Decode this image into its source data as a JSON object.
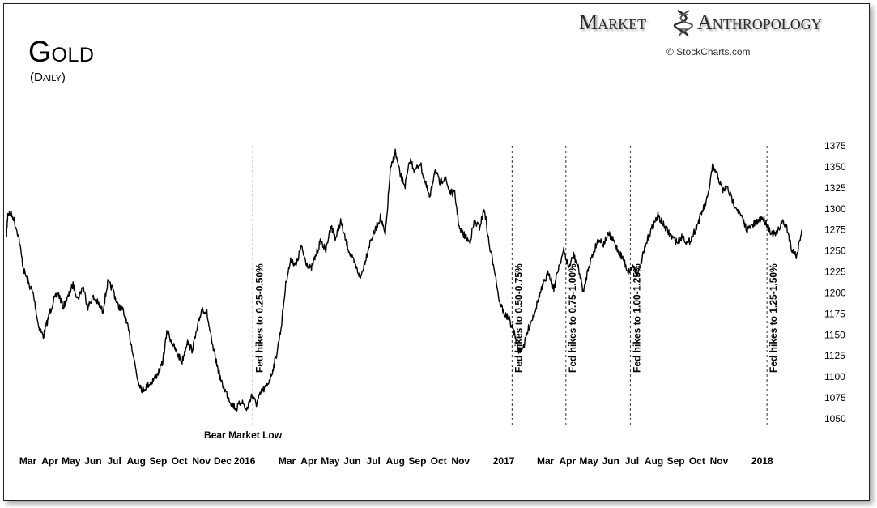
{
  "header": {
    "title": "Gold",
    "subtitle": "(Daily)",
    "brand_word1": "Market",
    "brand_word2": "Anthropology",
    "credit": "© StockCharts.com"
  },
  "icons": {
    "brand_mark": "dna-helix-icon"
  },
  "colors": {
    "price_line": "#000000",
    "vline": "#333333",
    "brand": "#2b2b2b"
  },
  "chart_data": {
    "type": "line",
    "title": "Gold",
    "subtitle": "(Daily)",
    "xlabel": "",
    "ylabel": "",
    "ylim": [
      1045,
      1385
    ],
    "xlim": [
      "2015-02-01",
      "2018-02-28"
    ],
    "grid": false,
    "yticks": [
      1050,
      1075,
      1100,
      1125,
      1150,
      1175,
      1200,
      1225,
      1250,
      1275,
      1300,
      1325,
      1350,
      1375
    ],
    "xticks": [
      {
        "label": "Mar",
        "date": "2015-03-01"
      },
      {
        "label": "Apr",
        "date": "2015-04-01"
      },
      {
        "label": "May",
        "date": "2015-05-01"
      },
      {
        "label": "Jun",
        "date": "2015-06-01"
      },
      {
        "label": "Jul",
        "date": "2015-07-01"
      },
      {
        "label": "Aug",
        "date": "2015-08-01"
      },
      {
        "label": "Sep",
        "date": "2015-09-01"
      },
      {
        "label": "Oct",
        "date": "2015-10-01"
      },
      {
        "label": "Nov",
        "date": "2015-11-01"
      },
      {
        "label": "Dec",
        "date": "2015-12-01"
      },
      {
        "label": "2016",
        "date": "2016-01-01"
      },
      {
        "label": "Mar",
        "date": "2016-03-01"
      },
      {
        "label": "Apr",
        "date": "2016-04-01"
      },
      {
        "label": "May",
        "date": "2016-05-01"
      },
      {
        "label": "Jun",
        "date": "2016-06-01"
      },
      {
        "label": "Jul",
        "date": "2016-07-01"
      },
      {
        "label": "Aug",
        "date": "2016-08-01"
      },
      {
        "label": "Sep",
        "date": "2016-09-01"
      },
      {
        "label": "Oct",
        "date": "2016-10-01"
      },
      {
        "label": "Nov",
        "date": "2016-11-01"
      },
      {
        "label": "2017",
        "date": "2017-01-01"
      },
      {
        "label": "Mar",
        "date": "2017-03-01"
      },
      {
        "label": "Apr",
        "date": "2017-04-01"
      },
      {
        "label": "May",
        "date": "2017-05-01"
      },
      {
        "label": "Jun",
        "date": "2017-06-01"
      },
      {
        "label": "Jul",
        "date": "2017-07-01"
      },
      {
        "label": "Aug",
        "date": "2017-08-01"
      },
      {
        "label": "Sep",
        "date": "2017-09-01"
      },
      {
        "label": "Oct",
        "date": "2017-10-01"
      },
      {
        "label": "Nov",
        "date": "2017-11-01"
      },
      {
        "label": "2018",
        "date": "2018-01-01"
      }
    ],
    "series": [
      {
        "values": [
          [
            "2015-02-01",
            1268
          ],
          [
            "2015-02-03",
            1296
          ],
          [
            "2015-02-10",
            1291
          ],
          [
            "2015-02-18",
            1268
          ],
          [
            "2015-02-25",
            1228
          ],
          [
            "2015-03-04",
            1212
          ],
          [
            "2015-03-11",
            1198
          ],
          [
            "2015-03-18",
            1162
          ],
          [
            "2015-03-25",
            1148
          ],
          [
            "2015-04-01",
            1170
          ],
          [
            "2015-04-08",
            1190
          ],
          [
            "2015-04-15",
            1200
          ],
          [
            "2015-04-22",
            1183
          ],
          [
            "2015-04-29",
            1195
          ],
          [
            "2015-05-06",
            1210
          ],
          [
            "2015-05-13",
            1193
          ],
          [
            "2015-05-20",
            1208
          ],
          [
            "2015-05-27",
            1183
          ],
          [
            "2015-06-03",
            1195
          ],
          [
            "2015-06-10",
            1188
          ],
          [
            "2015-06-17",
            1178
          ],
          [
            "2015-06-24",
            1212
          ],
          [
            "2015-07-01",
            1205
          ],
          [
            "2015-07-08",
            1185
          ],
          [
            "2015-07-15",
            1180
          ],
          [
            "2015-07-22",
            1160
          ],
          [
            "2015-07-29",
            1132
          ],
          [
            "2015-08-05",
            1098
          ],
          [
            "2015-08-12",
            1084
          ],
          [
            "2015-08-19",
            1090
          ],
          [
            "2015-08-26",
            1095
          ],
          [
            "2015-09-02",
            1103
          ],
          [
            "2015-09-09",
            1115
          ],
          [
            "2015-09-16",
            1155
          ],
          [
            "2015-09-23",
            1140
          ],
          [
            "2015-09-30",
            1128
          ],
          [
            "2015-10-07",
            1118
          ],
          [
            "2015-10-14",
            1142
          ],
          [
            "2015-10-21",
            1132
          ],
          [
            "2015-10-28",
            1155
          ],
          [
            "2015-11-04",
            1182
          ],
          [
            "2015-11-11",
            1176
          ],
          [
            "2015-11-18",
            1140
          ],
          [
            "2015-11-25",
            1115
          ],
          [
            "2015-12-02",
            1092
          ],
          [
            "2015-12-09",
            1080
          ],
          [
            "2015-12-16",
            1068
          ],
          [
            "2015-12-23",
            1062
          ],
          [
            "2015-12-30",
            1072
          ],
          [
            "2016-01-06",
            1060
          ],
          [
            "2016-01-13",
            1078
          ],
          [
            "2016-01-20",
            1068
          ],
          [
            "2016-01-27",
            1082
          ],
          [
            "2016-02-03",
            1088
          ],
          [
            "2016-02-10",
            1102
          ],
          [
            "2016-02-17",
            1125
          ],
          [
            "2016-02-24",
            1160
          ],
          [
            "2016-03-02",
            1215
          ],
          [
            "2016-03-09",
            1240
          ],
          [
            "2016-03-16",
            1232
          ],
          [
            "2016-03-23",
            1255
          ],
          [
            "2016-03-30",
            1237
          ],
          [
            "2016-04-06",
            1228
          ],
          [
            "2016-04-13",
            1245
          ],
          [
            "2016-04-20",
            1262
          ],
          [
            "2016-04-27",
            1250
          ],
          [
            "2016-05-04",
            1280
          ],
          [
            "2016-05-11",
            1265
          ],
          [
            "2016-05-18",
            1285
          ],
          [
            "2016-05-25",
            1262
          ],
          [
            "2016-06-01",
            1245
          ],
          [
            "2016-06-08",
            1232
          ],
          [
            "2016-06-15",
            1218
          ],
          [
            "2016-06-22",
            1240
          ],
          [
            "2016-06-29",
            1262
          ],
          [
            "2016-07-06",
            1275
          ],
          [
            "2016-07-13",
            1290
          ],
          [
            "2016-07-20",
            1268
          ],
          [
            "2016-07-27",
            1345
          ],
          [
            "2016-08-03",
            1368
          ],
          [
            "2016-08-10",
            1340
          ],
          [
            "2016-08-17",
            1328
          ],
          [
            "2016-08-24",
            1358
          ],
          [
            "2016-08-31",
            1345
          ],
          [
            "2016-09-07",
            1355
          ],
          [
            "2016-09-14",
            1332
          ],
          [
            "2016-09-21",
            1312
          ],
          [
            "2016-09-28",
            1348
          ],
          [
            "2016-10-05",
            1330
          ],
          [
            "2016-10-12",
            1338
          ],
          [
            "2016-10-19",
            1320
          ],
          [
            "2016-10-26",
            1318
          ],
          [
            "2016-11-02",
            1275
          ],
          [
            "2016-11-09",
            1268
          ],
          [
            "2016-11-16",
            1260
          ],
          [
            "2016-11-23",
            1285
          ],
          [
            "2016-11-30",
            1278
          ],
          [
            "2016-12-07",
            1300
          ],
          [
            "2016-12-14",
            1255
          ],
          [
            "2016-12-21",
            1230
          ],
          [
            "2016-12-28",
            1190
          ],
          [
            "2017-01-04",
            1175
          ],
          [
            "2017-01-11",
            1168
          ],
          [
            "2017-01-18",
            1152
          ],
          [
            "2017-01-25",
            1130
          ],
          [
            "2017-02-01",
            1138
          ],
          [
            "2017-02-08",
            1160
          ],
          [
            "2017-02-15",
            1175
          ],
          [
            "2017-02-22",
            1195
          ],
          [
            "2017-03-01",
            1212
          ],
          [
            "2017-03-08",
            1225
          ],
          [
            "2017-03-15",
            1205
          ],
          [
            "2017-03-22",
            1232
          ],
          [
            "2017-03-29",
            1250
          ],
          [
            "2017-04-05",
            1230
          ],
          [
            "2017-04-12",
            1245
          ],
          [
            "2017-04-19",
            1228
          ],
          [
            "2017-04-26",
            1200
          ],
          [
            "2017-05-03",
            1232
          ],
          [
            "2017-05-10",
            1248
          ],
          [
            "2017-05-17",
            1265
          ],
          [
            "2017-05-24",
            1258
          ],
          [
            "2017-05-31",
            1270
          ],
          [
            "2017-06-07",
            1262
          ],
          [
            "2017-06-14",
            1250
          ],
          [
            "2017-06-21",
            1240
          ],
          [
            "2017-06-28",
            1225
          ],
          [
            "2017-07-05",
            1232
          ],
          [
            "2017-07-12",
            1222
          ],
          [
            "2017-07-19",
            1245
          ],
          [
            "2017-07-26",
            1265
          ],
          [
            "2017-08-02",
            1280
          ],
          [
            "2017-08-09",
            1292
          ],
          [
            "2017-08-16",
            1282
          ],
          [
            "2017-08-23",
            1273
          ],
          [
            "2017-08-30",
            1265
          ],
          [
            "2017-09-06",
            1260
          ],
          [
            "2017-09-13",
            1268
          ],
          [
            "2017-09-20",
            1258
          ],
          [
            "2017-09-27",
            1268
          ],
          [
            "2017-10-04",
            1282
          ],
          [
            "2017-10-11",
            1298
          ],
          [
            "2017-10-18",
            1312
          ],
          [
            "2017-10-25",
            1350
          ],
          [
            "2017-11-01",
            1340
          ],
          [
            "2017-11-08",
            1322
          ],
          [
            "2017-11-15",
            1325
          ],
          [
            "2017-11-22",
            1310
          ],
          [
            "2017-11-29",
            1300
          ],
          [
            "2017-12-06",
            1288
          ],
          [
            "2017-12-13",
            1275
          ],
          [
            "2017-12-20",
            1280
          ],
          [
            "2017-12-27",
            1284
          ],
          [
            "2018-01-03",
            1290
          ],
          [
            "2018-01-10",
            1282
          ],
          [
            "2018-01-17",
            1270
          ],
          [
            "2018-01-24",
            1270
          ],
          [
            "2018-01-31",
            1285
          ],
          [
            "2018-02-07",
            1278
          ],
          [
            "2018-02-14",
            1252
          ],
          [
            "2018-02-21",
            1244
          ],
          [
            "2018-02-28",
            1275
          ]
        ]
      }
    ],
    "annotations": [
      {
        "text": "Fed hikes to 0.25-0.50%",
        "date": "2016-01-15"
      },
      {
        "text": "Fed hikes to 0.50-0.75%",
        "date": "2017-01-15"
      },
      {
        "text": "Fed hikes to 0.75-1.00%",
        "date": "2017-04-01"
      },
      {
        "text": "Fed hikes to 1.00-1.25%",
        "date": "2017-07-01"
      },
      {
        "text": "Fed hikes to 1.25-1.50%",
        "date": "2018-01-10"
      }
    ],
    "label": {
      "text": "Bear Market Low"
    }
  }
}
